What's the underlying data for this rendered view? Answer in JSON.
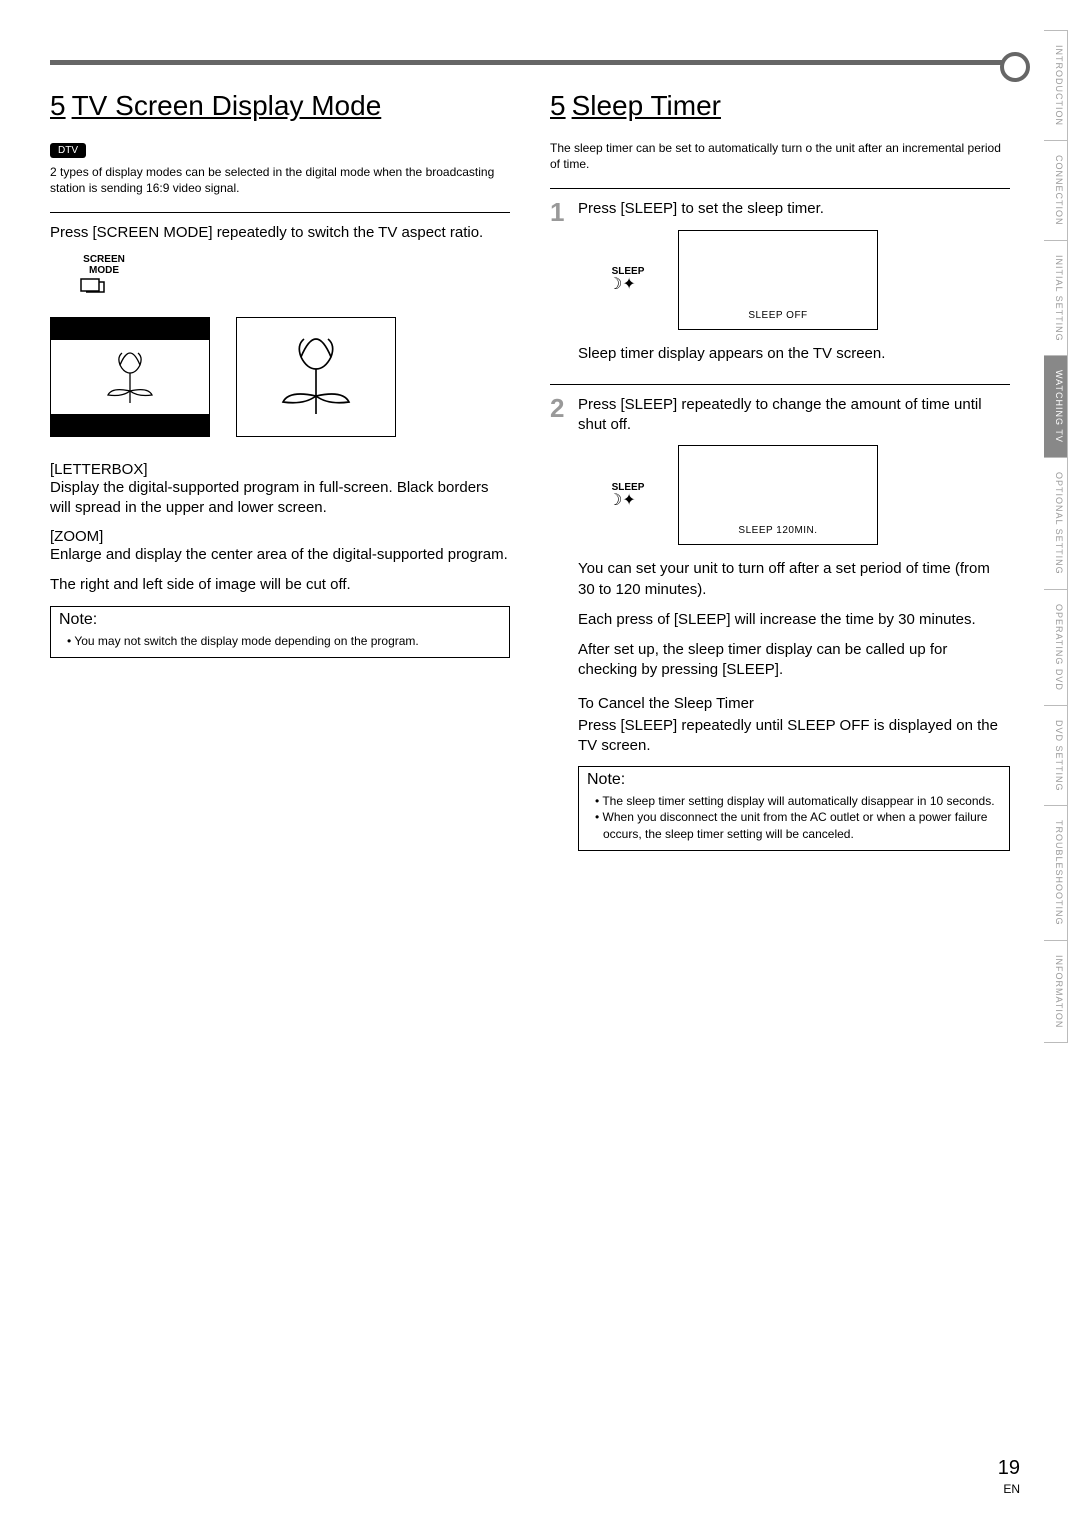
{
  "page": {
    "number": "19",
    "lang": "EN"
  },
  "tabs": [
    "INTRODUCTION",
    "CONNECTION",
    "INITIAL SETTING",
    "WATCHING TV",
    "OPTIONAL SETTING",
    "OPERATING DVD",
    "DVD SETTING",
    "TROUBLESHOOTING",
    "INFORMATION"
  ],
  "active_tab_index": 3,
  "left": {
    "section_num": "5",
    "title": "TV Screen Display Mode",
    "badge": "DTV",
    "intro": "2 types of display modes can be selected in the digital mode when the broadcasting station is sending 16:9 video signal.",
    "step_text": "Press [SCREEN MODE] repeatedly to switch the TV aspect ratio.",
    "button_label": "SCREEN\nMODE",
    "letterbox_head": "[LETTERBOX]",
    "letterbox_body": "Display the digital-supported program in full-screen. Black borders will spread in the upper and lower screen.",
    "zoom_head": "[ZOOM]",
    "zoom_body": "Enlarge and display the center area of the digital-supported program.",
    "zoom_body2": "The right and left side of image will be cut off.",
    "note_title": "Note:",
    "note_items": [
      "You may not switch the display mode depending on the program."
    ]
  },
  "right": {
    "section_num": "5",
    "title": "Sleep Timer",
    "intro": "The sleep timer can be set to automatically turn o    the unit after an incremental period of time.",
    "step1_num": "1",
    "step1_text": "Press [SLEEP] to set the sleep timer.",
    "sleep_label": "SLEEP",
    "osd1": "SLEEP  OFF",
    "after1": "Sleep timer display appears on the TV screen.",
    "step2_num": "2",
    "step2_text": "Press [SLEEP] repeatedly to change the amount of time until shut off.",
    "osd2": "SLEEP 120MIN.",
    "after2a": "You can set your unit to turn off after a set period of time (from 30 to 120 minutes).",
    "after2b": "Each press of [SLEEP] will increase the time by 30 minutes.",
    "after2c": "After set up, the sleep timer display can be called up for checking by pressing [SLEEP].",
    "cancel_head": "To Cancel the Sleep Timer",
    "cancel_body": "Press [SLEEP] repeatedly until  SLEEP OFF  is displayed on the TV screen.",
    "note_title": "Note:",
    "note_items": [
      "The sleep timer setting display will automatically disappear in 10 seconds.",
      "When you disconnect the unit from the AC outlet or when a power failure occurs, the sleep timer setting will be canceled."
    ]
  },
  "colors": {
    "accent_bar": "#666666",
    "tab_inactive_text": "#999999",
    "tab_active_bg": "#888888",
    "step_num": "#999999"
  }
}
